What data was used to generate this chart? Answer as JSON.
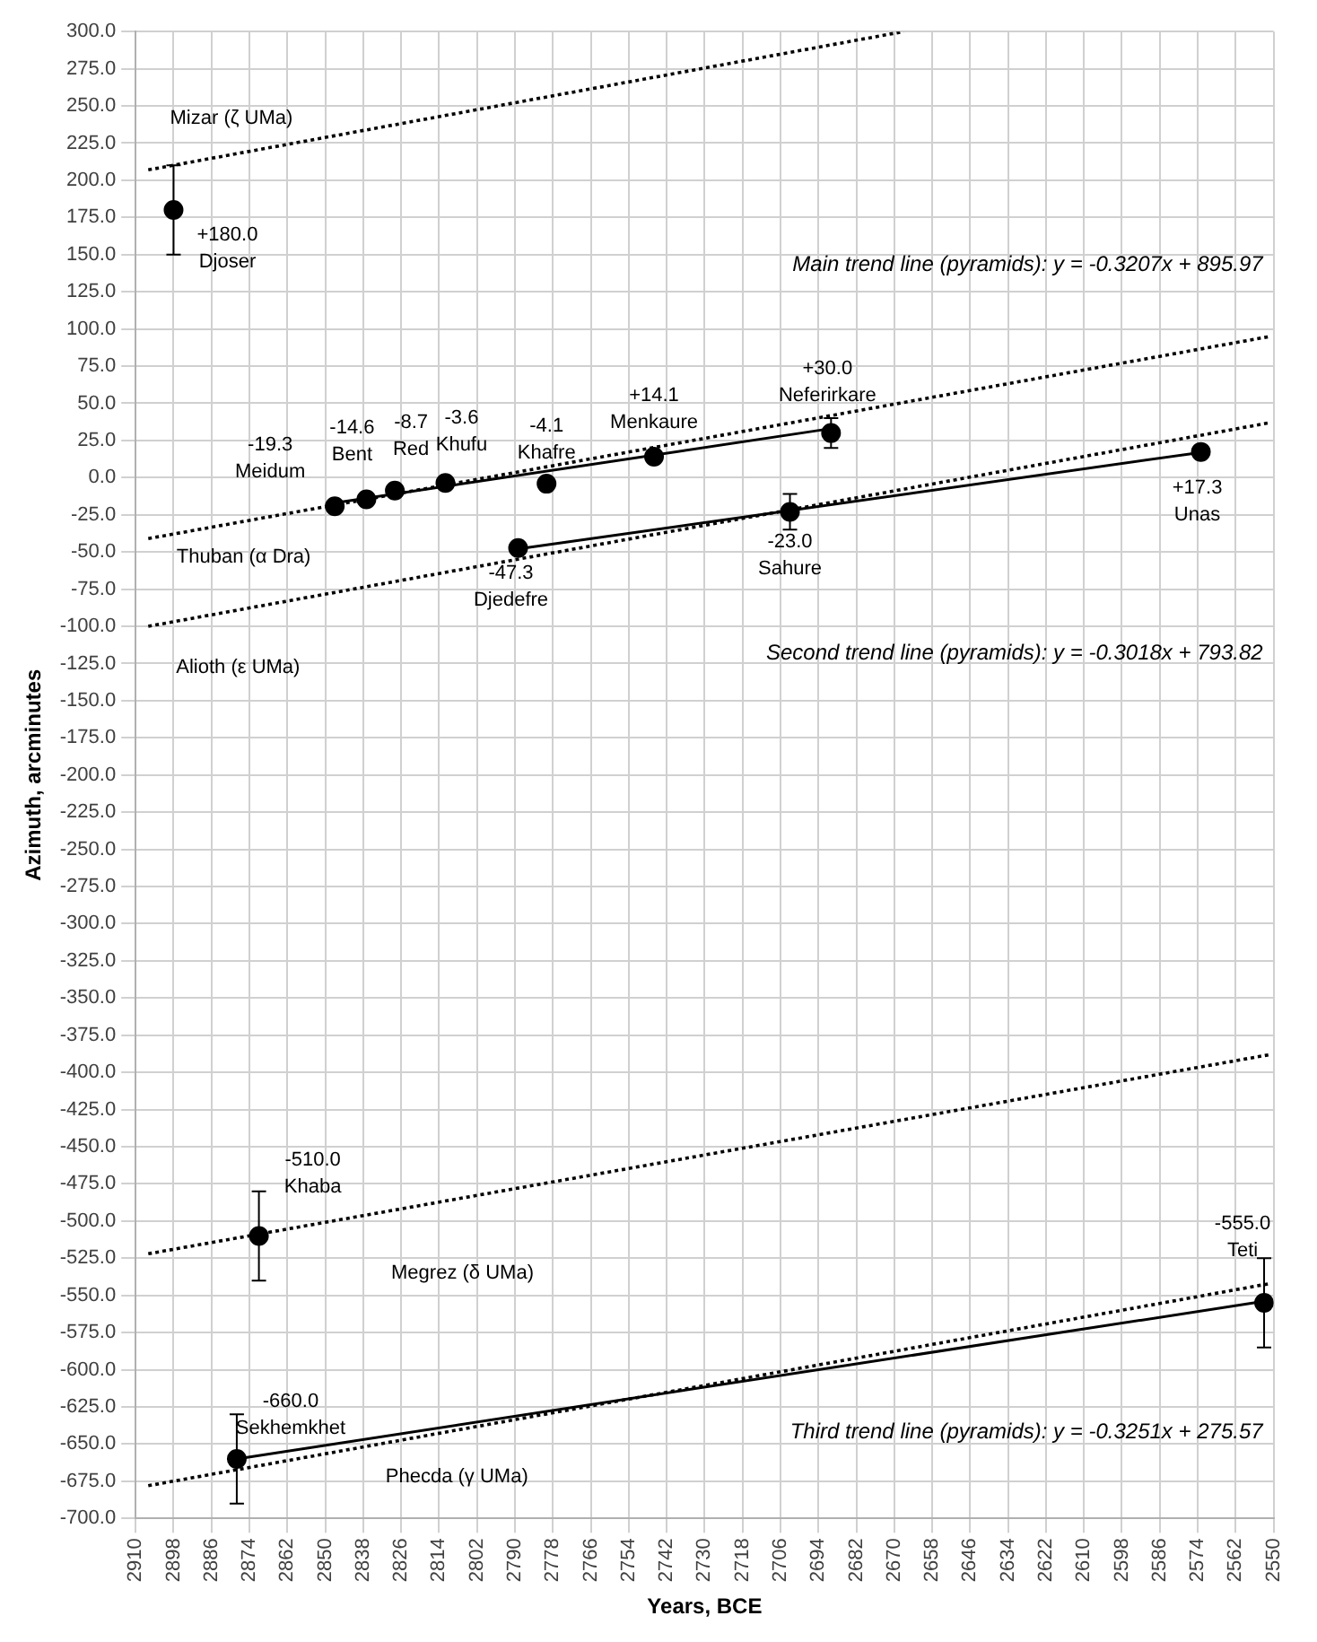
{
  "chart_data": {
    "type": "scatter",
    "xlabel": "Years, BCE",
    "ylabel": "Azimuth, arcminutes",
    "xlim": [
      2910,
      2550
    ],
    "xticks": [
      2910,
      2898,
      2886,
      2874,
      2862,
      2850,
      2838,
      2826,
      2814,
      2802,
      2790,
      2778,
      2766,
      2754,
      2742,
      2730,
      2718,
      2706,
      2694,
      2682,
      2670,
      2658,
      2646,
      2634,
      2622,
      2610,
      2598,
      2586,
      2574,
      2562,
      2550
    ],
    "ylim": [
      -700,
      300
    ],
    "yticks": [
      {
        "value": 300,
        "label": "300.0"
      },
      {
        "value": 275,
        "label": "275.0"
      },
      {
        "value": 250,
        "label": "250.0"
      },
      {
        "value": 225,
        "label": "225.0"
      },
      {
        "value": 200,
        "label": "200.0"
      },
      {
        "value": 175,
        "label": "175.0"
      },
      {
        "value": 150,
        "label": "150.0"
      },
      {
        "value": 125,
        "label": "125.0"
      },
      {
        "value": 100,
        "label": "100.0"
      },
      {
        "value": 75,
        "label": "75.0"
      },
      {
        "value": 50,
        "label": "50.0"
      },
      {
        "value": 25,
        "label": "25.0"
      },
      {
        "value": 0,
        "label": "0.0"
      },
      {
        "value": -25,
        "label": "-25.0"
      },
      {
        "value": -50,
        "label": "-50.0"
      },
      {
        "value": -75,
        "label": "-75.0"
      },
      {
        "value": -100,
        "label": "-100.0"
      },
      {
        "value": -125,
        "label": "-125.0"
      },
      {
        "value": -150,
        "label": "-150.0"
      },
      {
        "value": -175,
        "label": "-175.0"
      },
      {
        "value": -200,
        "label": "-200.0"
      },
      {
        "value": -225,
        "label": "-225.0"
      },
      {
        "value": -250,
        "label": "-250.0"
      },
      {
        "value": -275,
        "label": "-275.0"
      },
      {
        "value": -300,
        "label": "-300.0"
      },
      {
        "value": -325,
        "label": "-325.0"
      },
      {
        "value": -350,
        "label": "-350.0"
      },
      {
        "value": -375,
        "label": "-375.0"
      },
      {
        "value": -400,
        "label": "-400.0"
      },
      {
        "value": -425,
        "label": "-425.0"
      },
      {
        "value": -450,
        "label": "-450.0"
      },
      {
        "value": -475,
        "label": "-475.0"
      },
      {
        "value": -500,
        "label": "-500.0"
      },
      {
        "value": -525,
        "label": "-525.0"
      },
      {
        "value": -550,
        "label": "-550.0"
      },
      {
        "value": -575,
        "label": "-575.0"
      },
      {
        "value": -600,
        "label": "-600.0"
      },
      {
        "value": -625,
        "label": "-625.0"
      },
      {
        "value": -650,
        "label": "-650.0"
      },
      {
        "value": -675,
        "label": "-675.0"
      },
      {
        "value": -700,
        "label": "-700.0"
      }
    ],
    "grid": true,
    "legend": false,
    "series": [
      {
        "type": "line",
        "name": "Mizar (ζ UMa)",
        "color": "#000000",
        "line_style": "dotted",
        "x": [
          2906,
          2667
        ],
        "values": [
          207,
          300
        ]
      },
      {
        "type": "line",
        "name": "Thuban (α Dra)",
        "color": "#000000",
        "line_style": "dotted",
        "x": [
          2906,
          2551
        ],
        "values": [
          -41,
          95
        ]
      },
      {
        "type": "line",
        "name": "Alioth (ε UMa)",
        "color": "#000000",
        "line_style": "dotted",
        "x": [
          2906,
          2551
        ],
        "values": [
          -100,
          37
        ]
      },
      {
        "type": "line",
        "name": "Megrez (δ UMa)",
        "color": "#000000",
        "line_style": "dotted",
        "x": [
          2906,
          2551
        ],
        "values": [
          -522,
          -388
        ]
      },
      {
        "type": "line",
        "name": "Phecda (γ UMa)",
        "color": "#000000",
        "line_style": "dotted",
        "x": [
          2906,
          2551
        ],
        "values": [
          -678,
          -542
        ]
      },
      {
        "type": "line",
        "color": "#000000",
        "line_style": "solid",
        "x": [
          2847,
          2690
        ],
        "values": [
          -17,
          33
        ]
      },
      {
        "type": "line",
        "color": "#000000",
        "line_style": "solid",
        "x": [
          2789,
          2573
        ],
        "values": [
          -48,
          17
        ]
      },
      {
        "type": "line",
        "color": "#000000",
        "line_style": "solid",
        "x": [
          2878,
          2553
        ],
        "values": [
          -660,
          -554
        ]
      },
      {
        "marker": "circle",
        "color": "#000000",
        "x": [
          2898,
          2847,
          2837,
          2828,
          2812,
          2789,
          2780,
          2746,
          2703,
          2690,
          2573,
          2871,
          2878,
          2553
        ],
        "values": [
          180.0,
          -19.3,
          -14.6,
          -8.7,
          -3.6,
          -47.3,
          -4.1,
          14.1,
          -23.0,
          30.0,
          17.3,
          -510.0,
          -660.0,
          -555.0
        ],
        "errors": [
          30,
          null,
          null,
          null,
          null,
          null,
          null,
          null,
          12,
          10,
          null,
          30,
          30,
          30
        ],
        "value_labels": [
          "+180.0",
          "-19.3",
          "-14.6",
          "-8.7",
          "-3.6",
          "-47.3",
          "-4.1",
          "+14.1",
          "-23.0",
          "+30.0",
          "+17.3",
          "-510.0",
          "-660.0",
          "-555.0"
        ]
      }
    ],
    "annotations": [
      {
        "text": "Djoser",
        "x": 2898,
        "y": 180.0
      },
      {
        "text": "Meidum",
        "x": 2847,
        "y": -19.3
      },
      {
        "text": "Bent",
        "x": 2837,
        "y": -14.6
      },
      {
        "text": "Red",
        "x": 2828,
        "y": -8.7
      },
      {
        "text": "Khufu",
        "x": 2812,
        "y": -3.6
      },
      {
        "text": "Djedefre",
        "x": 2789,
        "y": -47.3
      },
      {
        "text": "Khafre",
        "x": 2780,
        "y": -4.1
      },
      {
        "text": "Menkaure",
        "x": 2746,
        "y": 14.1
      },
      {
        "text": "Sahure",
        "x": 2703,
        "y": -23.0
      },
      {
        "text": "Neferirkare",
        "x": 2690,
        "y": 30.0
      },
      {
        "text": "Unas",
        "x": 2573,
        "y": 17.3
      },
      {
        "text": "Khaba",
        "x": 2871,
        "y": -510.0
      },
      {
        "text": "Sekhemkhet",
        "x": 2878,
        "y": -660.0
      },
      {
        "text": "Teti",
        "x": 2553,
        "y": -555.0
      },
      "Main trend line (pyramids): y = -0.3207x + 895.97",
      "Second trend line (pyramids): y = -0.3018x + 793.82",
      "Third trend line (pyramids): y = -0.3251x + 275.57"
    ]
  }
}
